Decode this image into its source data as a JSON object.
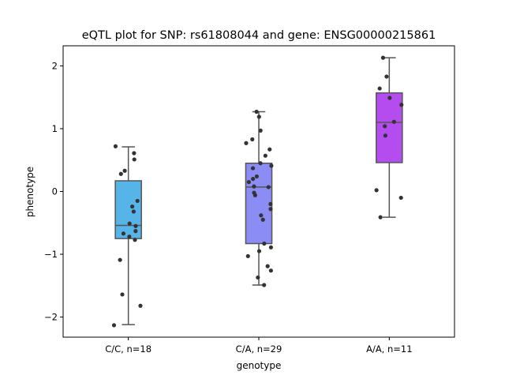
{
  "chart_data": {
    "type": "box",
    "title": "eQTL plot for SNP: rs61808044 and gene: ENSG00000215861",
    "xlabel": "genotype",
    "ylabel": "phenotype",
    "categories": [
      "C/C, n=18",
      "C/A, n=29",
      "A/A, n=11"
    ],
    "ylim": [
      -2.32,
      2.32
    ],
    "yticks": [
      -2,
      -1,
      0,
      1,
      2
    ],
    "ytick_labels": [
      "−2",
      "−1",
      "0",
      "1",
      "2"
    ],
    "colors": [
      "#56b4e9",
      "#8c8cf5",
      "#b44cf0"
    ],
    "point_color": "#333333",
    "boxes": [
      {
        "whisker_low": -2.12,
        "q1": -0.75,
        "median": -0.54,
        "q3": 0.17,
        "whisker_high": 0.71
      },
      {
        "whisker_low": -1.49,
        "q1": -0.83,
        "median": 0.07,
        "q3": 0.45,
        "whisker_high": 1.27
      },
      {
        "whisker_low": -0.41,
        "q1": 0.46,
        "median": 1.1,
        "q3": 1.57,
        "whisker_high": 2.13
      }
    ],
    "points": [
      [
        -2.13,
        -1.82,
        -1.64,
        -1.09,
        -0.77,
        -0.72,
        -0.67,
        -0.63,
        -0.55,
        -0.51,
        -0.32,
        -0.24,
        -0.15,
        0.28,
        0.33,
        0.51,
        0.61,
        0.72
      ],
      [
        -1.49,
        -1.37,
        -1.26,
        -1.19,
        -1.03,
        -0.95,
        -0.89,
        -0.83,
        -0.45,
        -0.38,
        -0.28,
        -0.2,
        -0.06,
        -0.02,
        0.07,
        0.08,
        0.15,
        0.2,
        0.24,
        0.37,
        0.41,
        0.45,
        0.57,
        0.67,
        0.77,
        0.83,
        0.97,
        1.19,
        1.27
      ],
      [
        -0.41,
        -0.1,
        0.02,
        0.89,
        1.04,
        1.11,
        1.38,
        1.49,
        1.64,
        1.83,
        2.13
      ]
    ]
  }
}
